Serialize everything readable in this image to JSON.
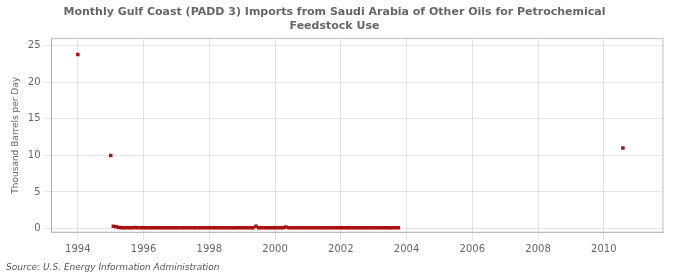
{
  "chart_data": {
    "type": "scatter",
    "title": "Monthly Gulf Coast (PADD 3) Imports from Saudi Arabia of Other Oils for Petrochemical\nFeedstock Use",
    "ylabel": "Thousand Barrels per Day",
    "annotations": [
      "Source: U.S. Energy Information Administration"
    ],
    "color": "#aa1111",
    "marker": "square",
    "grid": true,
    "xlim": [
      1993.2,
      2011.8
    ],
    "ylim": [
      -0.5,
      26
    ],
    "xticks": [
      1994,
      1996,
      1998,
      2000,
      2002,
      2004,
      2006,
      2008,
      2010
    ],
    "yticks": [
      0,
      5,
      10,
      15,
      20,
      25
    ],
    "x": [
      1994.0,
      1995.0,
      2010.58,
      1995.08,
      1995.17,
      1995.25,
      1995.33,
      1995.42,
      1995.5,
      1995.58,
      1995.67,
      1995.75,
      1995.83,
      1995.92,
      1996.0,
      1996.08,
      1996.17,
      1996.25,
      1996.33,
      1996.42,
      1996.5,
      1996.58,
      1996.67,
      1996.75,
      1996.83,
      1996.92,
      1997.0,
      1997.08,
      1997.17,
      1997.25,
      1997.33,
      1997.42,
      1997.5,
      1997.58,
      1997.67,
      1997.75,
      1997.83,
      1997.92,
      1998.0,
      1998.08,
      1998.17,
      1998.25,
      1998.33,
      1998.42,
      1998.5,
      1998.58,
      1998.67,
      1998.75,
      1998.83,
      1998.92,
      1999.0,
      1999.08,
      1999.17,
      1999.25,
      1999.33,
      1999.42,
      1999.5,
      1999.58,
      1999.67,
      1999.75,
      1999.83,
      1999.92,
      2000.0,
      2000.08,
      2000.17,
      2000.25,
      2000.33,
      2000.42,
      2000.5,
      2000.58,
      2000.67,
      2000.75,
      2000.83,
      2000.92,
      2001.0,
      2001.08,
      2001.17,
      2001.25,
      2001.33,
      2001.42,
      2001.5,
      2001.58,
      2001.67,
      2001.75,
      2001.83,
      2001.92,
      2002.0,
      2002.08,
      2002.17,
      2002.25,
      2002.33,
      2002.42,
      2002.5,
      2002.58,
      2002.67,
      2002.75,
      2002.83,
      2002.92,
      2003.0,
      2003.08,
      2003.17,
      2003.25,
      2003.33,
      2003.42,
      2003.5,
      2003.58,
      2003.67,
      2003.75
    ],
    "values": [
      23.8,
      10.0,
      11.0,
      0.3,
      0.25,
      0.15,
      0.1,
      0.1,
      0.1,
      0.1,
      0.1,
      0.15,
      0.1,
      0.1,
      0.1,
      0.1,
      0.1,
      0.1,
      0.1,
      0.1,
      0.1,
      0.1,
      0.1,
      0.1,
      0.1,
      0.1,
      0.1,
      0.1,
      0.1,
      0.1,
      0.1,
      0.1,
      0.1,
      0.1,
      0.1,
      0.1,
      0.1,
      0.1,
      0.1,
      0.1,
      0.1,
      0.1,
      0.1,
      0.1,
      0.1,
      0.1,
      0.1,
      0.1,
      0.1,
      0.1,
      0.1,
      0.1,
      0.1,
      0.1,
      0.1,
      0.3,
      0.1,
      0.1,
      0.1,
      0.1,
      0.1,
      0.1,
      0.1,
      0.1,
      0.1,
      0.1,
      0.2,
      0.1,
      0.1,
      0.1,
      0.1,
      0.1,
      0.1,
      0.1,
      0.1,
      0.1,
      0.1,
      0.1,
      0.1,
      0.1,
      0.1,
      0.1,
      0.1,
      0.1,
      0.1,
      0.1,
      0.1,
      0.1,
      0.1,
      0.1,
      0.1,
      0.1,
      0.1,
      0.1,
      0.1,
      0.1,
      0.1,
      0.1,
      0.1,
      0.1,
      0.1,
      0.1,
      0.1,
      0.1,
      0.1,
      0.1,
      0.1,
      0.1
    ]
  }
}
